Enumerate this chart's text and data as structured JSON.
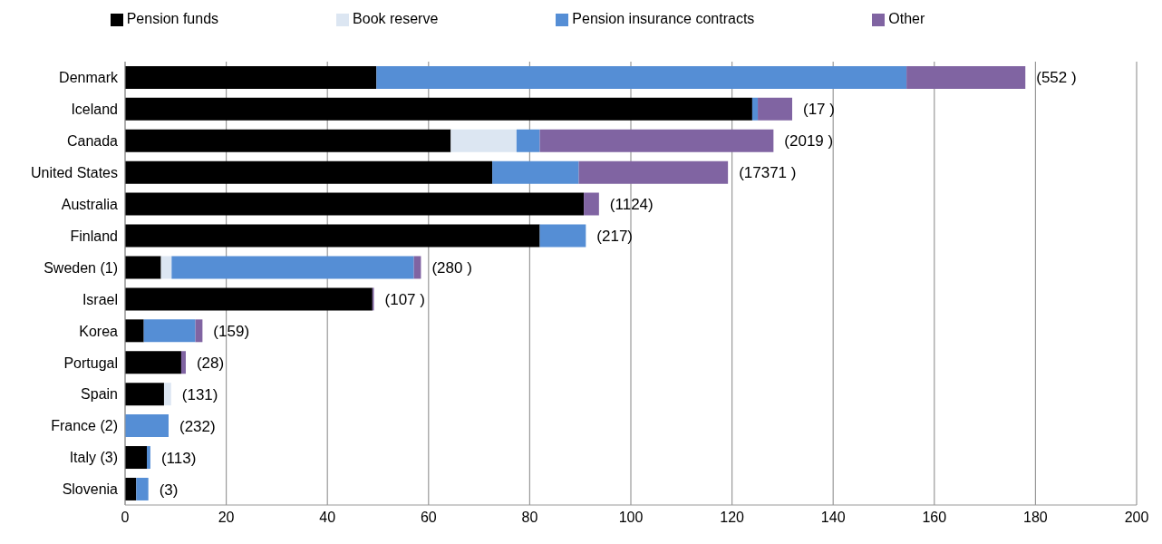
{
  "chart_data": {
    "type": "bar",
    "orientation": "horizontal",
    "stacked": true,
    "categories": [
      "Denmark",
      "Iceland",
      "Canada",
      "United States",
      "Australia",
      "Finland",
      "Sweden (1)",
      "Israel",
      "Korea",
      "Portugal",
      "Spain",
      "France (2)",
      "Italy (3)",
      "Slovenia"
    ],
    "series": [
      {
        "name": "Pension funds",
        "color": "#000000",
        "values": [
          49.7,
          124.0,
          64.4,
          72.6,
          90.7,
          82.0,
          7.1,
          48.9,
          3.7,
          11.1,
          7.7,
          null,
          4.3,
          2.2
        ]
      },
      {
        "name": "Book reserve",
        "color": "#dce6f2",
        "values": [
          null,
          null,
          13.0,
          null,
          null,
          null,
          2.1,
          null,
          null,
          null,
          1.4,
          null,
          null,
          null
        ]
      },
      {
        "name": "Pension insurance contracts",
        "color": "#558ed5",
        "values": [
          104.8,
          1.1,
          4.6,
          17.1,
          null,
          9.1,
          47.9,
          null,
          10.2,
          null,
          null,
          8.6,
          0.7,
          2.4
        ]
      },
      {
        "name": "Other",
        "color": "#8064a2",
        "values": [
          23.5,
          6.8,
          46.2,
          29.5,
          3.0,
          null,
          1.4,
          0.3,
          1.4,
          0.9,
          null,
          null,
          null,
          null
        ]
      }
    ],
    "xlim": [
      0,
      200
    ],
    "xticks": [
      0,
      20,
      40,
      60,
      80,
      100,
      120,
      140,
      160,
      180,
      200
    ],
    "grid": "x",
    "legend": "top",
    "annotations": [
      {
        "text": "(552 )",
        "x": 178.0,
        "y": "Denmark"
      },
      {
        "text": "(17 )",
        "x": 131.9,
        "y": "Iceland"
      },
      {
        "text": "(2019 )",
        "x": 128.2,
        "y": "Canada"
      },
      {
        "text": "(17371 )",
        "x": 119.2,
        "y": "United States"
      },
      {
        "text": "(1124)",
        "x": 93.7,
        "y": "Australia"
      },
      {
        "text": "(217)",
        "x": 91.1,
        "y": "Finland"
      },
      {
        "text": "(280 )",
        "x": 58.5,
        "y": "Sweden (1)"
      },
      {
        "text": "(107 )",
        "x": 49.2,
        "y": "Israel"
      },
      {
        "text": "(159)",
        "x": 15.3,
        "y": "Korea"
      },
      {
        "text": "(28)",
        "x": 12.0,
        "y": "Portugal"
      },
      {
        "text": "(131)",
        "x": 9.1,
        "y": "Spain"
      },
      {
        "text": "(232)",
        "x": 8.6,
        "y": "France (2)"
      },
      {
        "text": "(113)",
        "x": 5.0,
        "y": "Italy (3)"
      },
      {
        "text": "(3)",
        "x": 4.6,
        "y": "Slovenia"
      }
    ]
  }
}
